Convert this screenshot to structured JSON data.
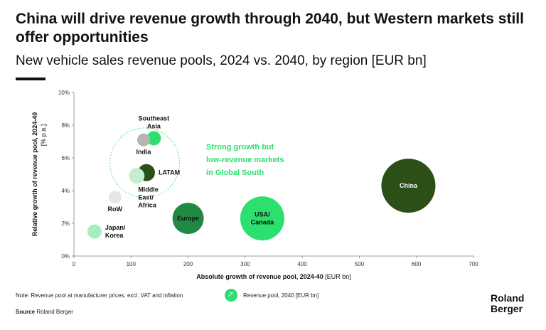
{
  "header": {
    "title": "China will drive revenue growth through 2040, but Western markets still offer opportunities",
    "subtitle": "New vehicle sales revenue pools, 2024 vs. 2040, by region [EUR bn]"
  },
  "chart_data": {
    "type": "scatter",
    "title": "New vehicle sales revenue pools, 2024 vs. 2040, by region [EUR bn]",
    "xlabel": "Absolute growth of revenue pool, 2024-40",
    "xlabel_unit": "[EUR bn]",
    "ylabel": "Relative growth of revenue pool, 2024-40",
    "ylabel_unit": "[% p.a.]",
    "xlim": [
      0,
      700
    ],
    "ylim": [
      0,
      10
    ],
    "x_ticks": [
      0,
      100,
      200,
      300,
      400,
      500,
      600,
      700
    ],
    "y_ticks": [
      0,
      2,
      4,
      6,
      8,
      10
    ],
    "y_tick_suffix": "%",
    "grid": false,
    "bubble_size_meaning": "Revenue pool, 2040 [EUR bn]",
    "points": [
      {
        "name": "China",
        "lines": [
          "China"
        ],
        "x": 586,
        "y": 4.3,
        "size": 38,
        "color": "#2b4f17",
        "label_pos": "inside",
        "label_color": "#ffffff"
      },
      {
        "name": "USA/Canada",
        "lines": [
          "USA/",
          "Canada"
        ],
        "x": 330,
        "y": 2.3,
        "size": 31,
        "color": "#2ddf6e",
        "label_pos": "inside",
        "label_color": "#111111"
      },
      {
        "name": "Europe",
        "lines": [
          "Europe"
        ],
        "x": 200,
        "y": 2.3,
        "size": 22,
        "color": "#208a45",
        "label_pos": "inside",
        "label_color": "#111111"
      },
      {
        "name": "LATAM",
        "lines": [
          "LATAM"
        ],
        "x": 127,
        "y": 5.1,
        "size": 12,
        "color": "#2b4f17",
        "label_pos": "right",
        "label_color": "#111111"
      },
      {
        "name": "Middle East/Africa",
        "lines": [
          "Middle",
          "East/",
          "Africa"
        ],
        "x": 110,
        "y": 4.9,
        "size": 11,
        "color": "#c3efcf",
        "label_pos": "below",
        "label_color": "#111111"
      },
      {
        "name": "Southeast Asia",
        "lines": [
          "Southeast",
          "Asia"
        ],
        "x": 140,
        "y": 7.2,
        "size": 10,
        "color": "#2ddf6e",
        "label_pos": "above",
        "label_color": "#111111"
      },
      {
        "name": "India",
        "lines": [
          "India"
        ],
        "x": 122,
        "y": 7.1,
        "size": 9,
        "color": "#b5b5b5",
        "label_pos": "below",
        "label_color": "#111111"
      },
      {
        "name": "RoW",
        "lines": [
          "RoW"
        ],
        "x": 72,
        "y": 3.6,
        "size": 9,
        "color": "#e6e6e6",
        "label_pos": "below",
        "label_color": "#111111"
      },
      {
        "name": "Japan/Korea",
        "lines": [
          "Japan/",
          "Korea"
        ],
        "x": 36,
        "y": 1.5,
        "size": 10,
        "color": "#a6eec0",
        "label_pos": "right",
        "label_color": "#111111"
      }
    ],
    "annotation": {
      "lines": [
        "Strong growth but",
        "low-revenue markets",
        "in Global South"
      ],
      "color": "#2ddf6e",
      "group_center": {
        "x": 124,
        "y": 5.7
      }
    }
  },
  "footer": {
    "note": "Note: Revenue pool at manufacturer prices, excl. VAT and inflation",
    "source_label": "Source",
    "source_value": "Roland Berger",
    "legend_label": "Revenue pool, 2040 [EUR bn]",
    "legend_icon": "arrow-diagonal-icon"
  },
  "logo": {
    "line1": "Roland",
    "line2": "Berger"
  }
}
